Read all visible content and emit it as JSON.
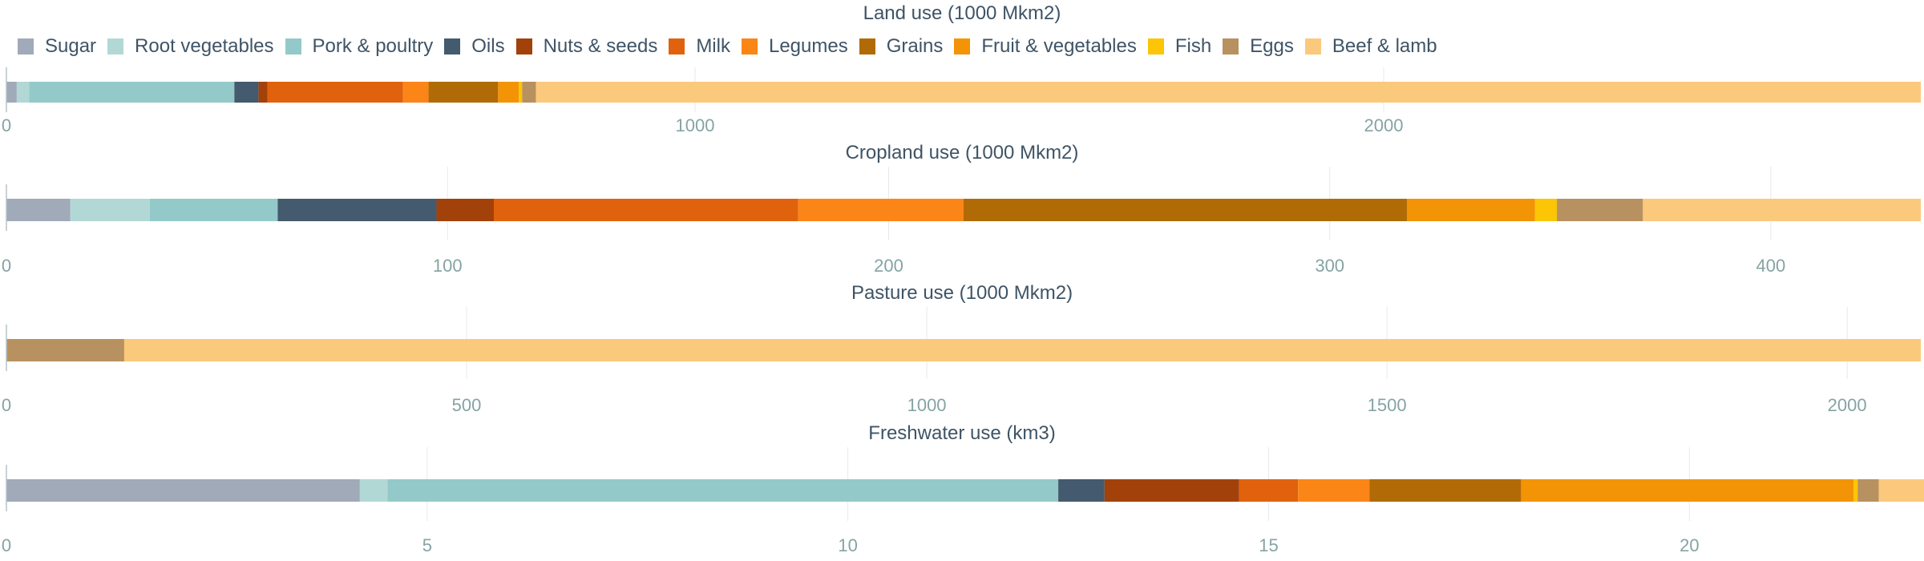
{
  "legend": [
    {
      "name": "Sugar",
      "color": "#a0aab8"
    },
    {
      "name": "Root vegetables",
      "color": "#b2d8d6"
    },
    {
      "name": "Pork & poultry",
      "color": "#94c9c9"
    },
    {
      "name": "Oils",
      "color": "#445a6e"
    },
    {
      "name": "Nuts & seeds",
      "color": "#a3410a"
    },
    {
      "name": "Milk",
      "color": "#e0620c"
    },
    {
      "name": "Legumes",
      "color": "#fb8517"
    },
    {
      "name": "Grains",
      "color": "#b06b07"
    },
    {
      "name": "Fruit & vegetables",
      "color": "#f39406"
    },
    {
      "name": "Fish",
      "color": "#fcc505"
    },
    {
      "name": "Eggs",
      "color": "#b89160"
    },
    {
      "name": "Beef & lamb",
      "color": "#fbc97c"
    }
  ],
  "chart_data": [
    {
      "type": "bar",
      "orientation": "horizontal",
      "stacked": true,
      "title": "Land use (1000 Mkm2)",
      "xlim": [
        0,
        2780
      ],
      "ticks": [
        0,
        1000,
        2000
      ],
      "categories": [
        "Sugar",
        "Root vegetables",
        "Pork & poultry",
        "Oils",
        "Nuts & seeds",
        "Milk",
        "Legumes",
        "Grains",
        "Fruit & vegetables",
        "Fish",
        "Eggs",
        "Beef & lamb"
      ],
      "values": [
        15,
        18,
        298,
        35,
        13,
        197,
        37,
        101,
        30,
        5,
        20,
        2011
      ]
    },
    {
      "type": "bar",
      "orientation": "horizontal",
      "stacked": true,
      "title": "Cropland use (1000 Mkm2)",
      "xlim": [
        0,
        434
      ],
      "ticks": [
        0,
        100,
        200,
        300,
        400
      ],
      "categories": [
        "Sugar",
        "Root vegetables",
        "Pork & poultry",
        "Oils",
        "Nuts & seeds",
        "Milk",
        "Legumes",
        "Grains",
        "Fruit & vegetables",
        "Fish",
        "Eggs",
        "Beef & lamb"
      ],
      "values": [
        14.5,
        18,
        29,
        36,
        13,
        69,
        37.5,
        100.5,
        29,
        5,
        19.5,
        63
      ]
    },
    {
      "type": "bar",
      "orientation": "horizontal",
      "stacked": true,
      "title": "Pasture use (1000 Mkm2)",
      "xlim": [
        0,
        2080
      ],
      "ticks": [
        0,
        500,
        1000,
        1500,
        2000
      ],
      "categories": [
        "Eggs",
        "Beef & lamb"
      ],
      "values": [
        128,
        1952
      ]
    },
    {
      "type": "bar",
      "orientation": "horizontal",
      "stacked": true,
      "title": "Freshwater use (km3)",
      "xlim": [
        0,
        22.75
      ],
      "ticks": [
        0,
        5,
        10,
        15,
        20
      ],
      "categories": [
        "Sugar",
        "Root vegetables",
        "Pork & poultry",
        "Oils",
        "Nuts & seeds",
        "Milk",
        "Legumes",
        "Grains",
        "Fruit & vegetables",
        "Fish",
        "Eggs",
        "Beef & lamb"
      ],
      "values": [
        4.2,
        0.33,
        7.97,
        0.55,
        1.6,
        0.7,
        0.85,
        1.8,
        3.95,
        0.05,
        0.25,
        0.55
      ]
    }
  ]
}
